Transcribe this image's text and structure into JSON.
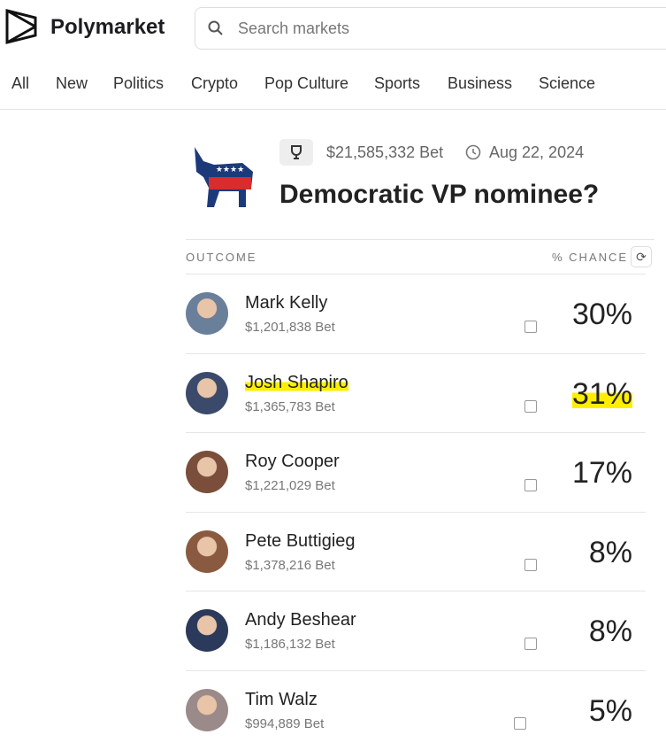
{
  "header": {
    "brand": "Polymarket",
    "search_placeholder": "Search markets"
  },
  "nav": [
    "All",
    "New",
    "Politics",
    "Crypto",
    "Pop Culture",
    "Sports",
    "Business",
    "Science"
  ],
  "market": {
    "volume": "$21,585,332 Bet",
    "end_date": "Aug 22, 2024",
    "title": "Democratic VP nominee?"
  },
  "table": {
    "outcome_header": "OUTCOME",
    "chance_header": "% CHANCE",
    "outcomes": [
      {
        "name": "Mark Kelly",
        "bet": "$1,201,838 Bet",
        "chance": "30%"
      },
      {
        "name": "Josh Shapiro",
        "bet": "$1,365,783 Bet",
        "chance": "31%",
        "highlighted": true
      },
      {
        "name": "Roy Cooper",
        "bet": "$1,221,029 Bet",
        "chance": "17%"
      },
      {
        "name": "Pete Buttigieg",
        "bet": "$1,378,216 Bet",
        "chance": "8%"
      },
      {
        "name": "Andy Beshear",
        "bet": "$1,186,132 Bet",
        "chance": "8%"
      },
      {
        "name": "Tim Walz",
        "bet": "$994,889 Bet",
        "chance": "5%"
      }
    ]
  }
}
